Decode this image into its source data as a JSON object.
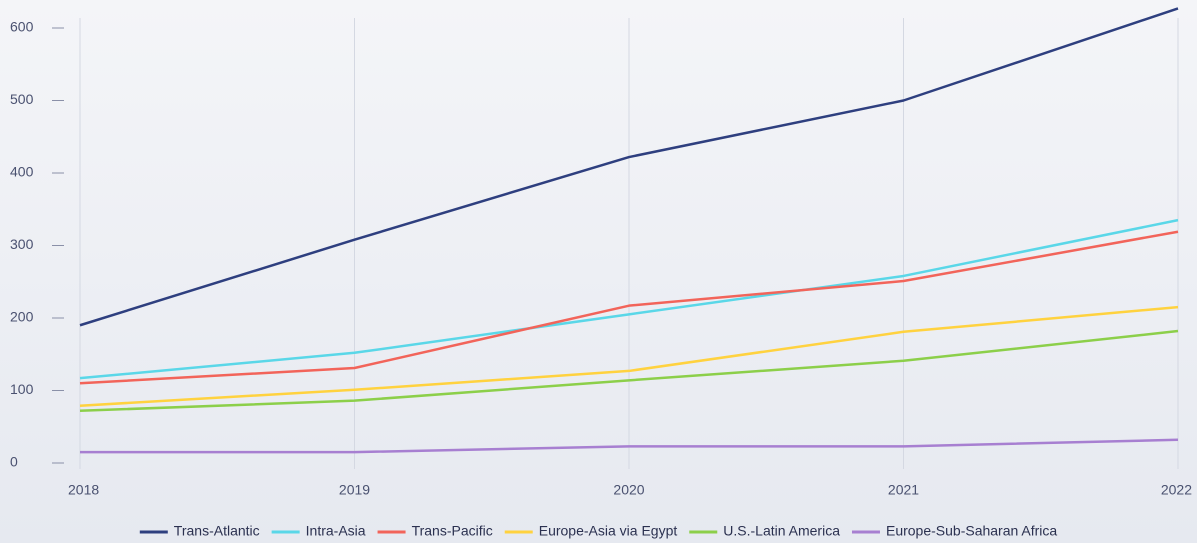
{
  "chart_data": {
    "type": "line",
    "x": [
      2018,
      2019,
      2020,
      2021,
      2022
    ],
    "xlim": [
      2018,
      2022
    ],
    "xticks": [
      2018,
      2019,
      2020,
      2021,
      2022
    ],
    "ylim": [
      0,
      600
    ],
    "yticks": [
      0,
      100,
      200,
      300,
      400,
      500,
      600
    ],
    "legend": "bottom",
    "series": [
      {
        "name": "Trans-Atlantic",
        "color": "#2e3f7f",
        "values": [
          190,
          308,
          422,
          500,
          627
        ]
      },
      {
        "name": "Intra-Asia",
        "color": "#5ad7e8",
        "values": [
          117,
          152,
          205,
          258,
          335
        ]
      },
      {
        "name": "Trans-Pacific",
        "color": "#f2645a",
        "values": [
          110,
          131,
          217,
          251,
          319
        ]
      },
      {
        "name": "Europe-Asia via Egypt",
        "color": "#ffd23f",
        "values": [
          79,
          101,
          127,
          181,
          215
        ]
      },
      {
        "name": "U.S.-Latin America",
        "color": "#8ccf4a",
        "values": [
          72,
          86,
          114,
          141,
          182
        ]
      },
      {
        "name": "Europe-Sub-Saharan Africa",
        "color": "#a77fd1",
        "values": [
          15,
          15,
          23,
          23,
          32
        ]
      }
    ]
  }
}
